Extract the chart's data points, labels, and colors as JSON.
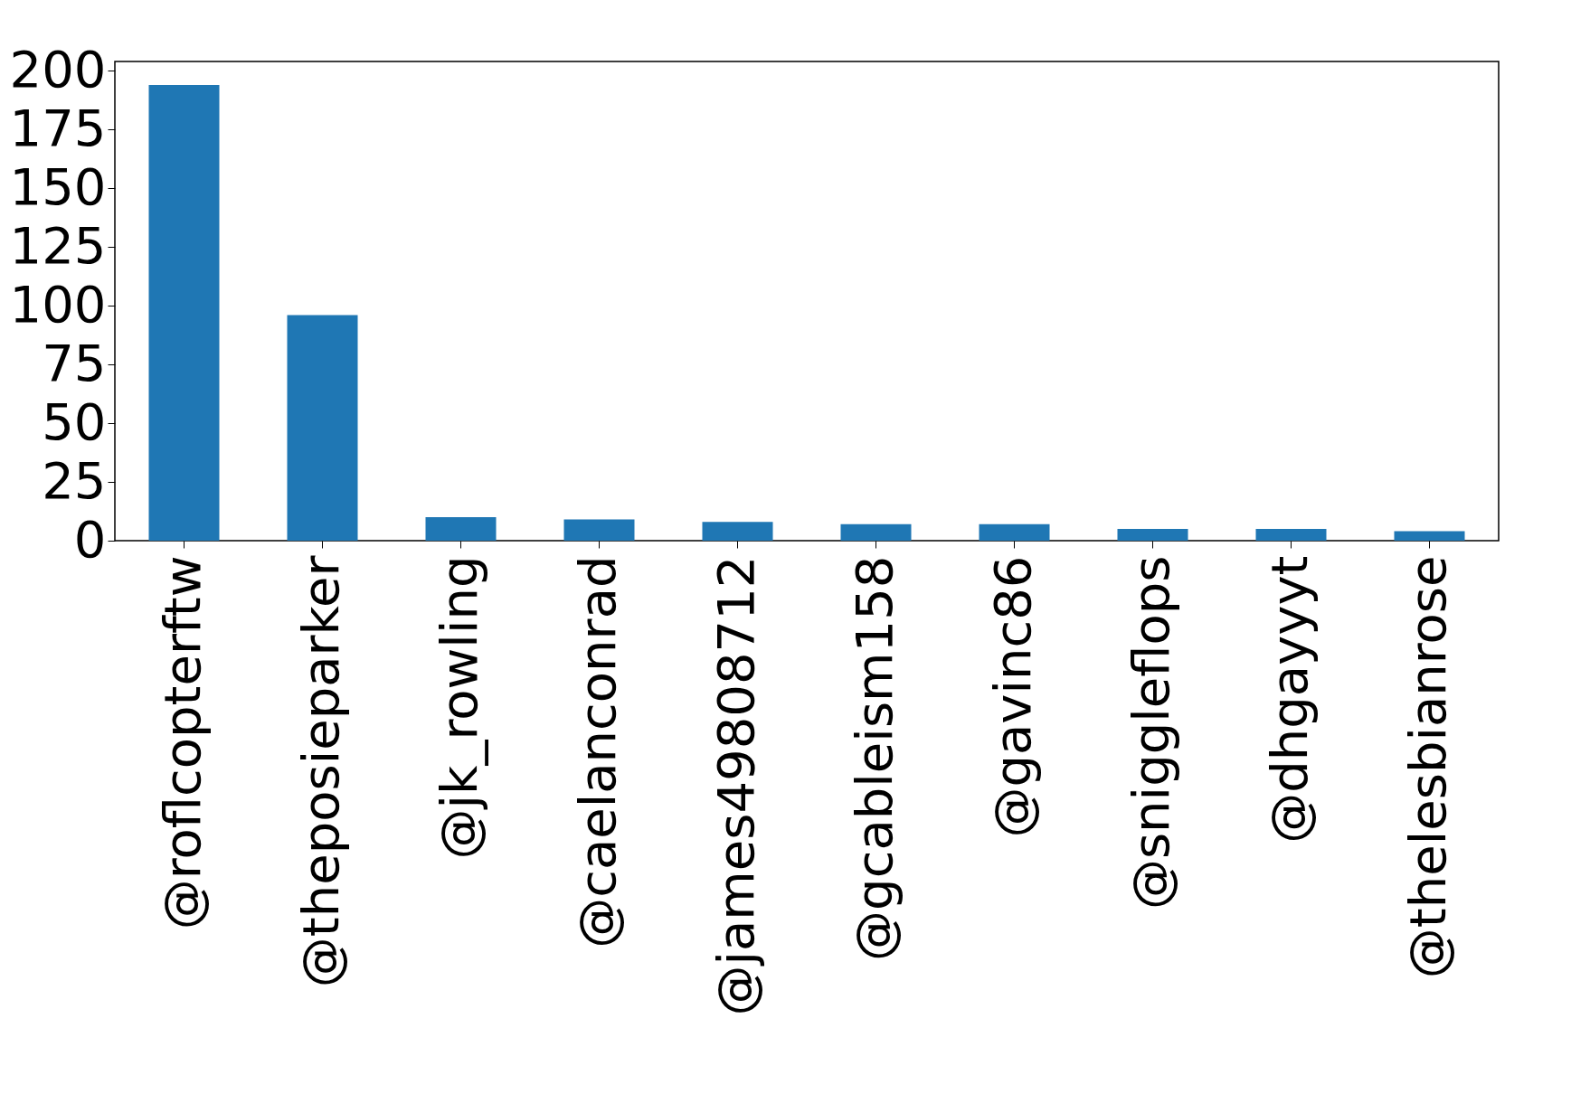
{
  "chart_data": {
    "type": "bar",
    "categories": [
      "@roflcopterftw",
      "@theposieparker",
      "@jk_rowling",
      "@caelanconrad",
      "@james49808712",
      "@gcableism158",
      "@gavinc86",
      "@sniggleflops",
      "@dhgayyyt",
      "@thelesbianrose"
    ],
    "values": [
      194,
      96,
      10,
      9,
      8,
      7,
      7,
      5,
      5,
      4
    ],
    "color": "#1f77b4",
    "ylim": [
      0,
      204
    ],
    "yticks": [
      0,
      25,
      50,
      75,
      100,
      125,
      150,
      175,
      200
    ],
    "grid": false
  }
}
